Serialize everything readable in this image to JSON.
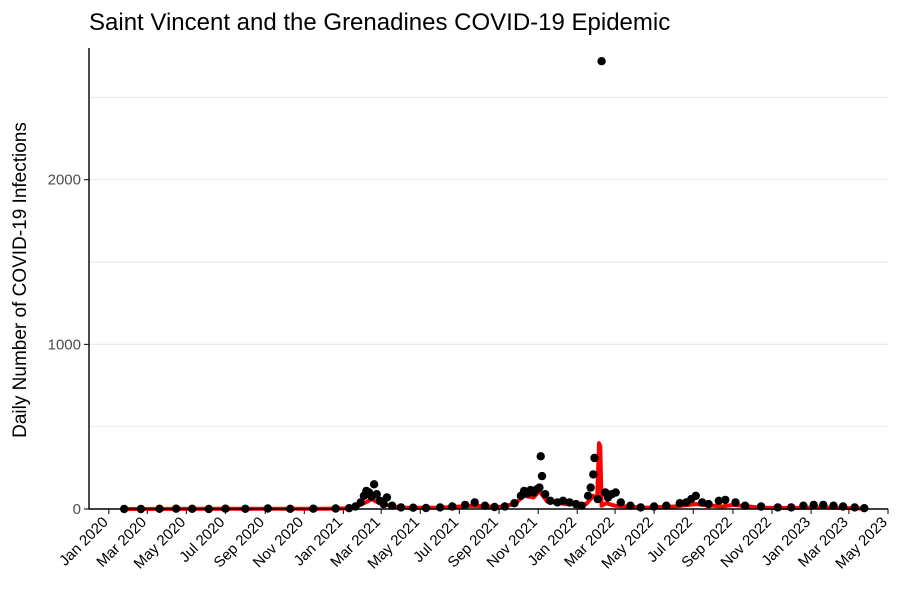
{
  "chart_data": {
    "type": "scatter",
    "title": "Saint Vincent and the Grenadines COVID-19 Epidemic",
    "xlabel": "",
    "ylabel": "Daily Number of COVID-19 Infections",
    "xlim": [
      "2019-12-01",
      "2023-05-01"
    ],
    "ylim": [
      0,
      2800
    ],
    "y_ticks": [
      0,
      1000,
      2000
    ],
    "y_grid": [
      0,
      500,
      1000,
      1500,
      2000,
      2500
    ],
    "x_ticks": [
      {
        "date": "2020-01-01",
        "label": "Jan 2020"
      },
      {
        "date": "2020-03-01",
        "label": "Mar 2020"
      },
      {
        "date": "2020-05-01",
        "label": "May 2020"
      },
      {
        "date": "2020-07-01",
        "label": "Jul 2020"
      },
      {
        "date": "2020-09-01",
        "label": "Sep 2020"
      },
      {
        "date": "2020-11-01",
        "label": "Nov 2020"
      },
      {
        "date": "2021-01-01",
        "label": "Jan 2021"
      },
      {
        "date": "2021-03-01",
        "label": "Mar 2021"
      },
      {
        "date": "2021-05-01",
        "label": "May 2021"
      },
      {
        "date": "2021-07-01",
        "label": "Jul 2021"
      },
      {
        "date": "2021-09-01",
        "label": "Sep 2021"
      },
      {
        "date": "2021-11-01",
        "label": "Nov 2021"
      },
      {
        "date": "2022-01-01",
        "label": "Jan 2022"
      },
      {
        "date": "2022-03-01",
        "label": "Mar 2022"
      },
      {
        "date": "2022-05-01",
        "label": "May 2022"
      },
      {
        "date": "2022-07-01",
        "label": "Jul 2022"
      },
      {
        "date": "2022-09-01",
        "label": "Sep 2022"
      },
      {
        "date": "2022-11-01",
        "label": "Nov 2022"
      },
      {
        "date": "2023-01-01",
        "label": "Jan 2023"
      },
      {
        "date": "2023-03-01",
        "label": "Mar 2023"
      },
      {
        "date": "2023-05-01",
        "label": "May 2023"
      }
    ],
    "grid": "horizontal",
    "legend": "none",
    "colors": {
      "points": "#000000",
      "trend": "#ff0000"
    },
    "points": [
      [
        "2020-01-25",
        0
      ],
      [
        "2020-02-20",
        0
      ],
      [
        "2020-03-20",
        1
      ],
      [
        "2020-04-15",
        2
      ],
      [
        "2020-05-10",
        1
      ],
      [
        "2020-06-05",
        0
      ],
      [
        "2020-07-01",
        2
      ],
      [
        "2020-08-01",
        1
      ],
      [
        "2020-09-05",
        3
      ],
      [
        "2020-10-10",
        1
      ],
      [
        "2020-11-15",
        2
      ],
      [
        "2020-12-20",
        3
      ],
      [
        "2021-01-10",
        5
      ],
      [
        "2021-01-20",
        15
      ],
      [
        "2021-01-28",
        40
      ],
      [
        "2021-02-02",
        80
      ],
      [
        "2021-02-06",
        110
      ],
      [
        "2021-02-10",
        100
      ],
      [
        "2021-02-14",
        75
      ],
      [
        "2021-02-18",
        150
      ],
      [
        "2021-02-22",
        90
      ],
      [
        "2021-02-27",
        50
      ],
      [
        "2021-03-05",
        30
      ],
      [
        "2021-03-10",
        70
      ],
      [
        "2021-03-18",
        20
      ],
      [
        "2021-04-01",
        10
      ],
      [
        "2021-04-20",
        8
      ],
      [
        "2021-05-10",
        6
      ],
      [
        "2021-06-01",
        10
      ],
      [
        "2021-06-20",
        15
      ],
      [
        "2021-07-10",
        25
      ],
      [
        "2021-07-25",
        40
      ],
      [
        "2021-08-10",
        20
      ],
      [
        "2021-08-25",
        12
      ],
      [
        "2021-09-10",
        15
      ],
      [
        "2021-09-25",
        35
      ],
      [
        "2021-10-05",
        80
      ],
      [
        "2021-10-10",
        110
      ],
      [
        "2021-10-15",
        95
      ],
      [
        "2021-10-20",
        115
      ],
      [
        "2021-10-25",
        100
      ],
      [
        "2021-10-30",
        120
      ],
      [
        "2021-11-03",
        130
      ],
      [
        "2021-11-05",
        320
      ],
      [
        "2021-11-07",
        200
      ],
      [
        "2021-11-12",
        90
      ],
      [
        "2021-11-20",
        50
      ],
      [
        "2021-12-01",
        40
      ],
      [
        "2021-12-10",
        50
      ],
      [
        "2021-12-20",
        40
      ],
      [
        "2021-12-30",
        30
      ],
      [
        "2022-01-08",
        20
      ],
      [
        "2022-01-18",
        80
      ],
      [
        "2022-01-22",
        130
      ],
      [
        "2022-01-26",
        210
      ],
      [
        "2022-01-28",
        310
      ],
      [
        "2022-02-02",
        60
      ],
      [
        "2022-02-08",
        2720
      ],
      [
        "2022-02-14",
        100
      ],
      [
        "2022-02-18",
        70
      ],
      [
        "2022-02-24",
        90
      ],
      [
        "2022-03-02",
        100
      ],
      [
        "2022-03-10",
        40
      ],
      [
        "2022-03-25",
        20
      ],
      [
        "2022-04-10",
        10
      ],
      [
        "2022-05-01",
        15
      ],
      [
        "2022-05-20",
        20
      ],
      [
        "2022-06-10",
        35
      ],
      [
        "2022-06-20",
        40
      ],
      [
        "2022-06-28",
        60
      ],
      [
        "2022-07-05",
        80
      ],
      [
        "2022-07-15",
        40
      ],
      [
        "2022-07-25",
        30
      ],
      [
        "2022-08-10",
        50
      ],
      [
        "2022-08-20",
        55
      ],
      [
        "2022-09-05",
        40
      ],
      [
        "2022-09-20",
        20
      ],
      [
        "2022-10-15",
        15
      ],
      [
        "2022-11-10",
        10
      ],
      [
        "2022-12-01",
        10
      ],
      [
        "2022-12-20",
        20
      ],
      [
        "2023-01-05",
        25
      ],
      [
        "2023-01-20",
        25
      ],
      [
        "2023-02-05",
        20
      ],
      [
        "2023-02-20",
        15
      ],
      [
        "2023-03-10",
        10
      ],
      [
        "2023-03-25",
        5
      ]
    ],
    "trend": [
      [
        "2020-01-25",
        0
      ],
      [
        "2020-06-01",
        1
      ],
      [
        "2020-12-01",
        2
      ],
      [
        "2021-01-15",
        5
      ],
      [
        "2021-02-05",
        40
      ],
      [
        "2021-02-14",
        60
      ],
      [
        "2021-02-26",
        35
      ],
      [
        "2021-03-10",
        25
      ],
      [
        "2021-04-01",
        8
      ],
      [
        "2021-06-01",
        8
      ],
      [
        "2021-07-20",
        20
      ],
      [
        "2021-09-01",
        12
      ],
      [
        "2021-09-25",
        30
      ],
      [
        "2021-10-10",
        80
      ],
      [
        "2021-10-25",
        70
      ],
      [
        "2021-11-03",
        110
      ],
      [
        "2021-11-15",
        45
      ],
      [
        "2021-12-15",
        30
      ],
      [
        "2022-01-15",
        30
      ],
      [
        "2022-01-26",
        80
      ],
      [
        "2022-02-01",
        60
      ],
      [
        "2022-02-04",
        400
      ],
      [
        "2022-02-06",
        380
      ],
      [
        "2022-02-08",
        20
      ],
      [
        "2022-02-15",
        35
      ],
      [
        "2022-03-01",
        20
      ],
      [
        "2022-04-15",
        8
      ],
      [
        "2022-06-01",
        15
      ],
      [
        "2022-07-05",
        30
      ],
      [
        "2022-08-15",
        15
      ],
      [
        "2022-09-01",
        25
      ],
      [
        "2022-10-15",
        8
      ],
      [
        "2022-12-01",
        6
      ],
      [
        "2023-01-15",
        10
      ],
      [
        "2023-03-25",
        3
      ]
    ]
  }
}
